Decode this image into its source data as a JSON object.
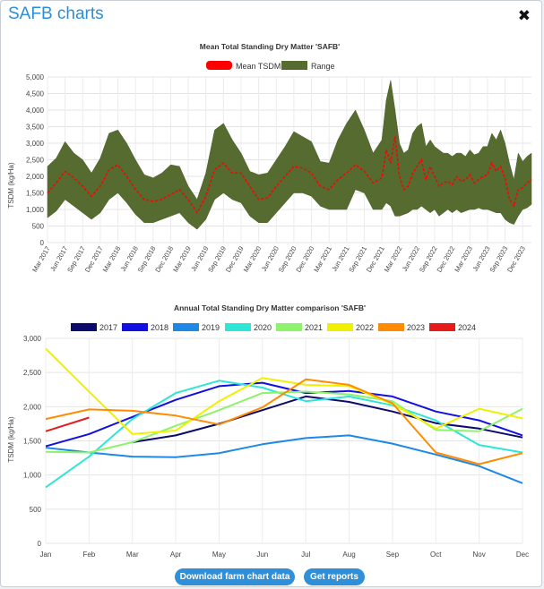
{
  "modal": {
    "title": "SAFB charts",
    "close_icon": "close-icon"
  },
  "buttons": {
    "download_label": "Download farm chart data",
    "reports_label": "Get reports"
  },
  "colors": {
    "title": "#2c8fd6",
    "range_fill": "#556b2f",
    "mean_line": "#ff0000",
    "button": "#2f8fd8"
  },
  "chart_data": [
    {
      "type": "area",
      "title": "Mean Total Standing Dry Matter 'SAFB'",
      "xlabel": "",
      "ylabel": "TSDM (kg/Ha)",
      "ylim": [
        0,
        5000
      ],
      "yticks": [
        "0",
        "500",
        "1,000",
        "1,500",
        "2,000",
        "2,500",
        "3,000",
        "3,500",
        "4,000",
        "4,500",
        "5,000"
      ],
      "xticks": [
        "Mar 2017",
        "Jun 2017",
        "Sep 2017",
        "Dec 2017",
        "Mar 2018",
        "Jun 2018",
        "Sep 2018",
        "Dec 2018",
        "Mar 2019",
        "Jun 2019",
        "Sep 2019",
        "Dec 2019",
        "Mar 2020",
        "Jun 2020",
        "Sep 2020",
        "Dec 2020",
        "Mar 2021",
        "Jun 2021",
        "Sep 2021",
        "Dec 2021",
        "Mar 2022",
        "Jun 2022",
        "Sep 2022",
        "Dec 2022",
        "Mar 2023",
        "Jun 2023",
        "Sep 2023",
        "Dec 2023"
      ],
      "legend": [
        "Mean TSDM",
        "Range"
      ],
      "x": [
        0,
        0.5,
        1,
        1.5,
        2,
        2.5,
        3,
        3.5,
        4,
        4.5,
        5,
        5.5,
        6,
        6.5,
        7,
        7.5,
        8,
        8.5,
        9,
        9.5,
        10,
        10.5,
        11,
        11.5,
        12,
        12.5,
        13,
        13.5,
        14,
        14.5,
        15,
        15.5,
        16,
        16.5,
        17,
        17.5,
        18,
        18.5,
        19,
        19.25,
        19.5,
        19.75,
        20,
        20.25,
        20.5,
        20.75,
        21,
        21.25,
        21.5,
        21.75,
        22,
        22.25,
        22.5,
        22.75,
        23,
        23.25,
        23.5,
        23.75,
        24,
        24.25,
        24.5,
        24.75,
        25,
        25.25,
        25.5,
        25.75,
        26,
        26.25,
        26.5,
        26.75,
        27,
        27.25,
        27.5
      ],
      "series": [
        {
          "name": "Mean TSDM",
          "values": [
            1500,
            1800,
            2150,
            1950,
            1700,
            1400,
            1700,
            2200,
            2350,
            2000,
            1600,
            1300,
            1250,
            1300,
            1450,
            1600,
            1300,
            900,
            1400,
            2200,
            2400,
            2100,
            2100,
            1700,
            1300,
            1350,
            1700,
            2000,
            2300,
            2250,
            2100,
            1700,
            1600,
            1900,
            2100,
            2350,
            2150,
            1800,
            1950,
            2800,
            2400,
            3200,
            2000,
            1600,
            1700,
            2100,
            2300,
            2500,
            1900,
            2300,
            2000,
            1700,
            1800,
            1850,
            1750,
            2000,
            1850,
            1900,
            2050,
            1800,
            1900,
            2000,
            2050,
            2400,
            2150,
            2300,
            1950,
            1300,
            1100,
            1600,
            1650,
            1800,
            1900
          ]
        },
        {
          "name": "Range max",
          "values": [
            2300,
            2550,
            3050,
            2700,
            2500,
            2100,
            2550,
            3300,
            3400,
            3000,
            2500,
            2050,
            1950,
            2100,
            2350,
            2300,
            1700,
            1300,
            2100,
            3400,
            3600,
            3100,
            2700,
            2150,
            2050,
            2100,
            2500,
            2900,
            3350,
            3200,
            3050,
            2450,
            2400,
            3100,
            3600,
            4000,
            3400,
            2700,
            3100,
            4300,
            4900,
            4000,
            3000,
            2700,
            2800,
            3300,
            3500,
            3600,
            2900,
            3100,
            2900,
            2800,
            2700,
            2700,
            2600,
            2700,
            2700,
            2600,
            2800,
            2650,
            2700,
            2900,
            2900,
            3300,
            3100,
            3400,
            3000,
            2400,
            1900,
            2700,
            2450,
            2600,
            2700
          ]
        },
        {
          "name": "Range min",
          "values": [
            750,
            950,
            1300,
            1100,
            900,
            700,
            900,
            1300,
            1500,
            1200,
            850,
            600,
            600,
            700,
            800,
            900,
            600,
            400,
            700,
            1300,
            1500,
            1300,
            1200,
            800,
            600,
            600,
            900,
            1200,
            1500,
            1500,
            1400,
            1100,
            1000,
            1000,
            1000,
            1600,
            1500,
            1000,
            1000,
            1200,
            1100,
            800,
            800,
            850,
            900,
            1000,
            1000,
            1100,
            1000,
            900,
            1000,
            800,
            900,
            1000,
            900,
            1000,
            900,
            950,
            1000,
            1000,
            1050,
            1000,
            1000,
            950,
            900,
            900,
            700,
            600,
            550,
            800,
            1000,
            1050,
            1150
          ]
        }
      ]
    },
    {
      "type": "line",
      "title": "Annual Total Standing Dry Matter comparison 'SAFB'",
      "xlabel": "",
      "ylabel": "TSDM (kg/Ha)",
      "ylim": [
        0,
        3000
      ],
      "yticks": [
        "0",
        "500",
        "1,000",
        "1,500",
        "2,000",
        "2,500",
        "3,000"
      ],
      "categories": [
        "Jan",
        "Feb",
        "Mar",
        "Apr",
        "May",
        "Jun",
        "Jul",
        "Aug",
        "Sep",
        "Oct",
        "Nov",
        "Dec"
      ],
      "series": [
        {
          "name": "2017",
          "color": "#0b0b6e",
          "values": [
            null,
            null,
            1480,
            1580,
            1750,
            1950,
            2150,
            2070,
            1930,
            1760,
            1680,
            1550
          ]
        },
        {
          "name": "2018",
          "color": "#1010e0",
          "values": [
            1420,
            1600,
            1850,
            2100,
            2300,
            2350,
            2200,
            2230,
            2150,
            1930,
            1800,
            1580
          ]
        },
        {
          "name": "2019",
          "color": "#1e88e5",
          "values": [
            1400,
            1330,
            1270,
            1260,
            1320,
            1450,
            1540,
            1580,
            1460,
            1300,
            1130,
            880
          ]
        },
        {
          "name": "2020",
          "color": "#2ee6d6",
          "values": [
            820,
            1270,
            1820,
            2200,
            2380,
            2280,
            2080,
            2150,
            2020,
            1800,
            1440,
            1330
          ]
        },
        {
          "name": "2021",
          "color": "#8cf36a",
          "values": [
            1340,
            1330,
            1480,
            1720,
            1950,
            2200,
            2220,
            2180,
            2080,
            1660,
            1640,
            1970
          ]
        },
        {
          "name": "2022",
          "color": "#f0f000",
          "values": [
            2850,
            2220,
            1600,
            1650,
            2080,
            2420,
            2320,
            2300,
            2040,
            1680,
            1970,
            1830
          ]
        },
        {
          "name": "2023",
          "color": "#ff8c00",
          "values": [
            1820,
            1960,
            1940,
            1870,
            1740,
            1990,
            2400,
            2320,
            2050,
            1330,
            1160,
            1320
          ]
        },
        {
          "name": "2024",
          "color": "#e51c1c",
          "values": [
            1640,
            1840,
            null,
            null,
            null,
            null,
            null,
            null,
            null,
            null,
            null,
            null
          ]
        }
      ]
    }
  ]
}
